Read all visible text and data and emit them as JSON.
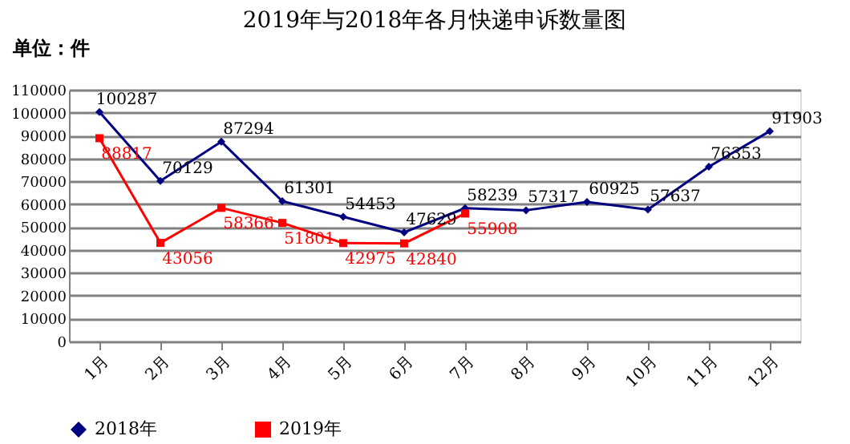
{
  "chart_data": {
    "type": "line",
    "title": "2019年与2018年各月快递申诉数量图",
    "annotations": [
      "单位：件"
    ],
    "categories": [
      "1月",
      "2月",
      "3月",
      "4月",
      "5月",
      "6月",
      "7月",
      "8月",
      "9月",
      "10月",
      "11月",
      "12月"
    ],
    "series": [
      {
        "name": "2018年",
        "color": "#000080",
        "marker": "diamond",
        "values": [
          100287,
          70129,
          87294,
          61301,
          54453,
          47629,
          58239,
          57317,
          60925,
          57637,
          76353,
          91903
        ]
      },
      {
        "name": "2019年",
        "color": "#ff0000",
        "marker": "square",
        "values": [
          88817,
          43056,
          58366,
          51801,
          42975,
          42840,
          55908,
          null,
          null,
          null,
          null,
          null
        ]
      }
    ],
    "ylim": [
      0,
      110000
    ],
    "yticks": [
      0,
      10000,
      20000,
      30000,
      40000,
      50000,
      60000,
      70000,
      80000,
      90000,
      100000,
      110000
    ],
    "grid": "y",
    "legend": "bottom",
    "data_labels": true,
    "line_style": "solid"
  }
}
